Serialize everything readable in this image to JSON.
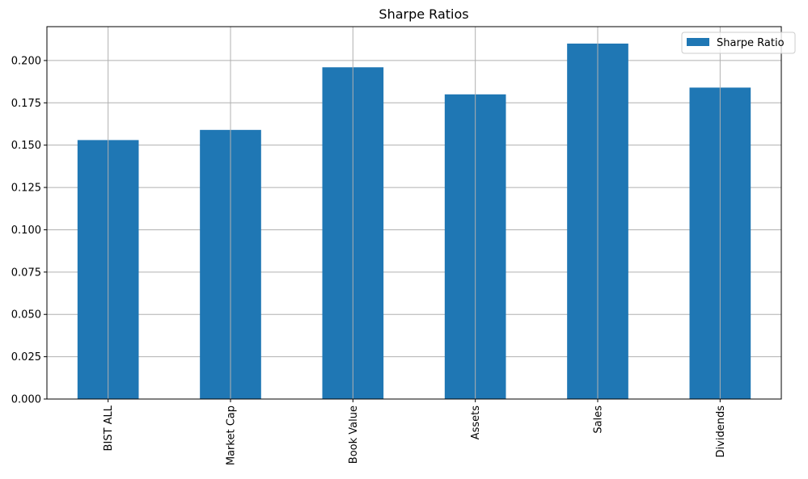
{
  "chart_data": {
    "type": "bar",
    "title": "Sharpe Ratios",
    "xlabel": "",
    "ylabel": "",
    "categories": [
      "BIST ALL",
      "Market Cap",
      "Book Value",
      "Assets",
      "Sales",
      "Dividends"
    ],
    "series": [
      {
        "name": "Sharpe Ratio",
        "values": [
          0.153,
          0.159,
          0.196,
          0.18,
          0.21,
          0.184
        ],
        "color": "#1f77b4"
      }
    ],
    "ylim": [
      0,
      0.22
    ],
    "yticks": [
      0.0,
      0.025,
      0.05,
      0.075,
      0.1,
      0.125,
      0.15,
      0.175,
      0.2
    ],
    "ytick_labels": [
      "0.000",
      "0.025",
      "0.050",
      "0.075",
      "0.100",
      "0.125",
      "0.150",
      "0.175",
      "0.200"
    ],
    "grid": true,
    "legend_position": "top-right"
  }
}
